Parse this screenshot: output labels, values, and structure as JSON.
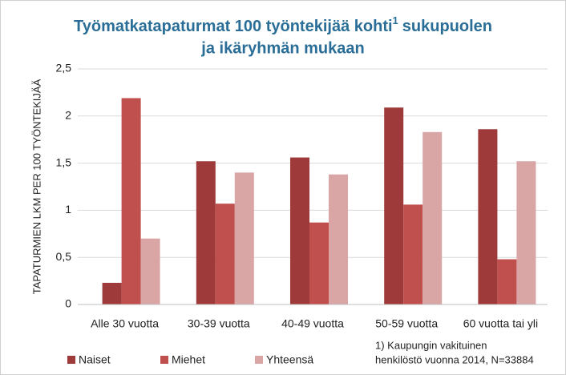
{
  "chart_data": {
    "type": "bar",
    "title": [
      "Työmatkatapaturmat 100 työntekijää kohti",
      "1",
      "sukupuolen",
      "ja ikäryhmän mukaan"
    ],
    "y_label": "TAPATURMIEN LKM PER 100 TYÖNTEKIJÄÄ",
    "categories": [
      "Alle 30 vuotta",
      "30-39 vuotta",
      "40-49 vuotta",
      "50-59 vuotta",
      "60 vuotta tai yli"
    ],
    "series": [
      {
        "name": "Naiset",
        "color": "#9e3b3a",
        "values": [
          0.23,
          1.52,
          1.56,
          2.09,
          1.86
        ]
      },
      {
        "name": "Miehet",
        "color": "#c0504d",
        "values": [
          2.19,
          1.07,
          0.87,
          1.06,
          0.48
        ]
      },
      {
        "name": "Yhteensä",
        "color": "#d9a5a5",
        "values": [
          0.7,
          1.4,
          1.38,
          1.83,
          1.52
        ]
      }
    ],
    "ylim": [
      0,
      2.5
    ],
    "yticks": [
      0,
      {
        "value": 0.5,
        "label": "0,5"
      },
      1,
      {
        "value": 1.5,
        "label": "1,5"
      },
      2,
      {
        "value": 2.5,
        "label": "2,5"
      }
    ],
    "grid": true,
    "legend": "bottom-left",
    "footnote": [
      "1)  Kaupungin vakituinen",
      "henkilöstö vuonna 2014, N=33884"
    ]
  }
}
